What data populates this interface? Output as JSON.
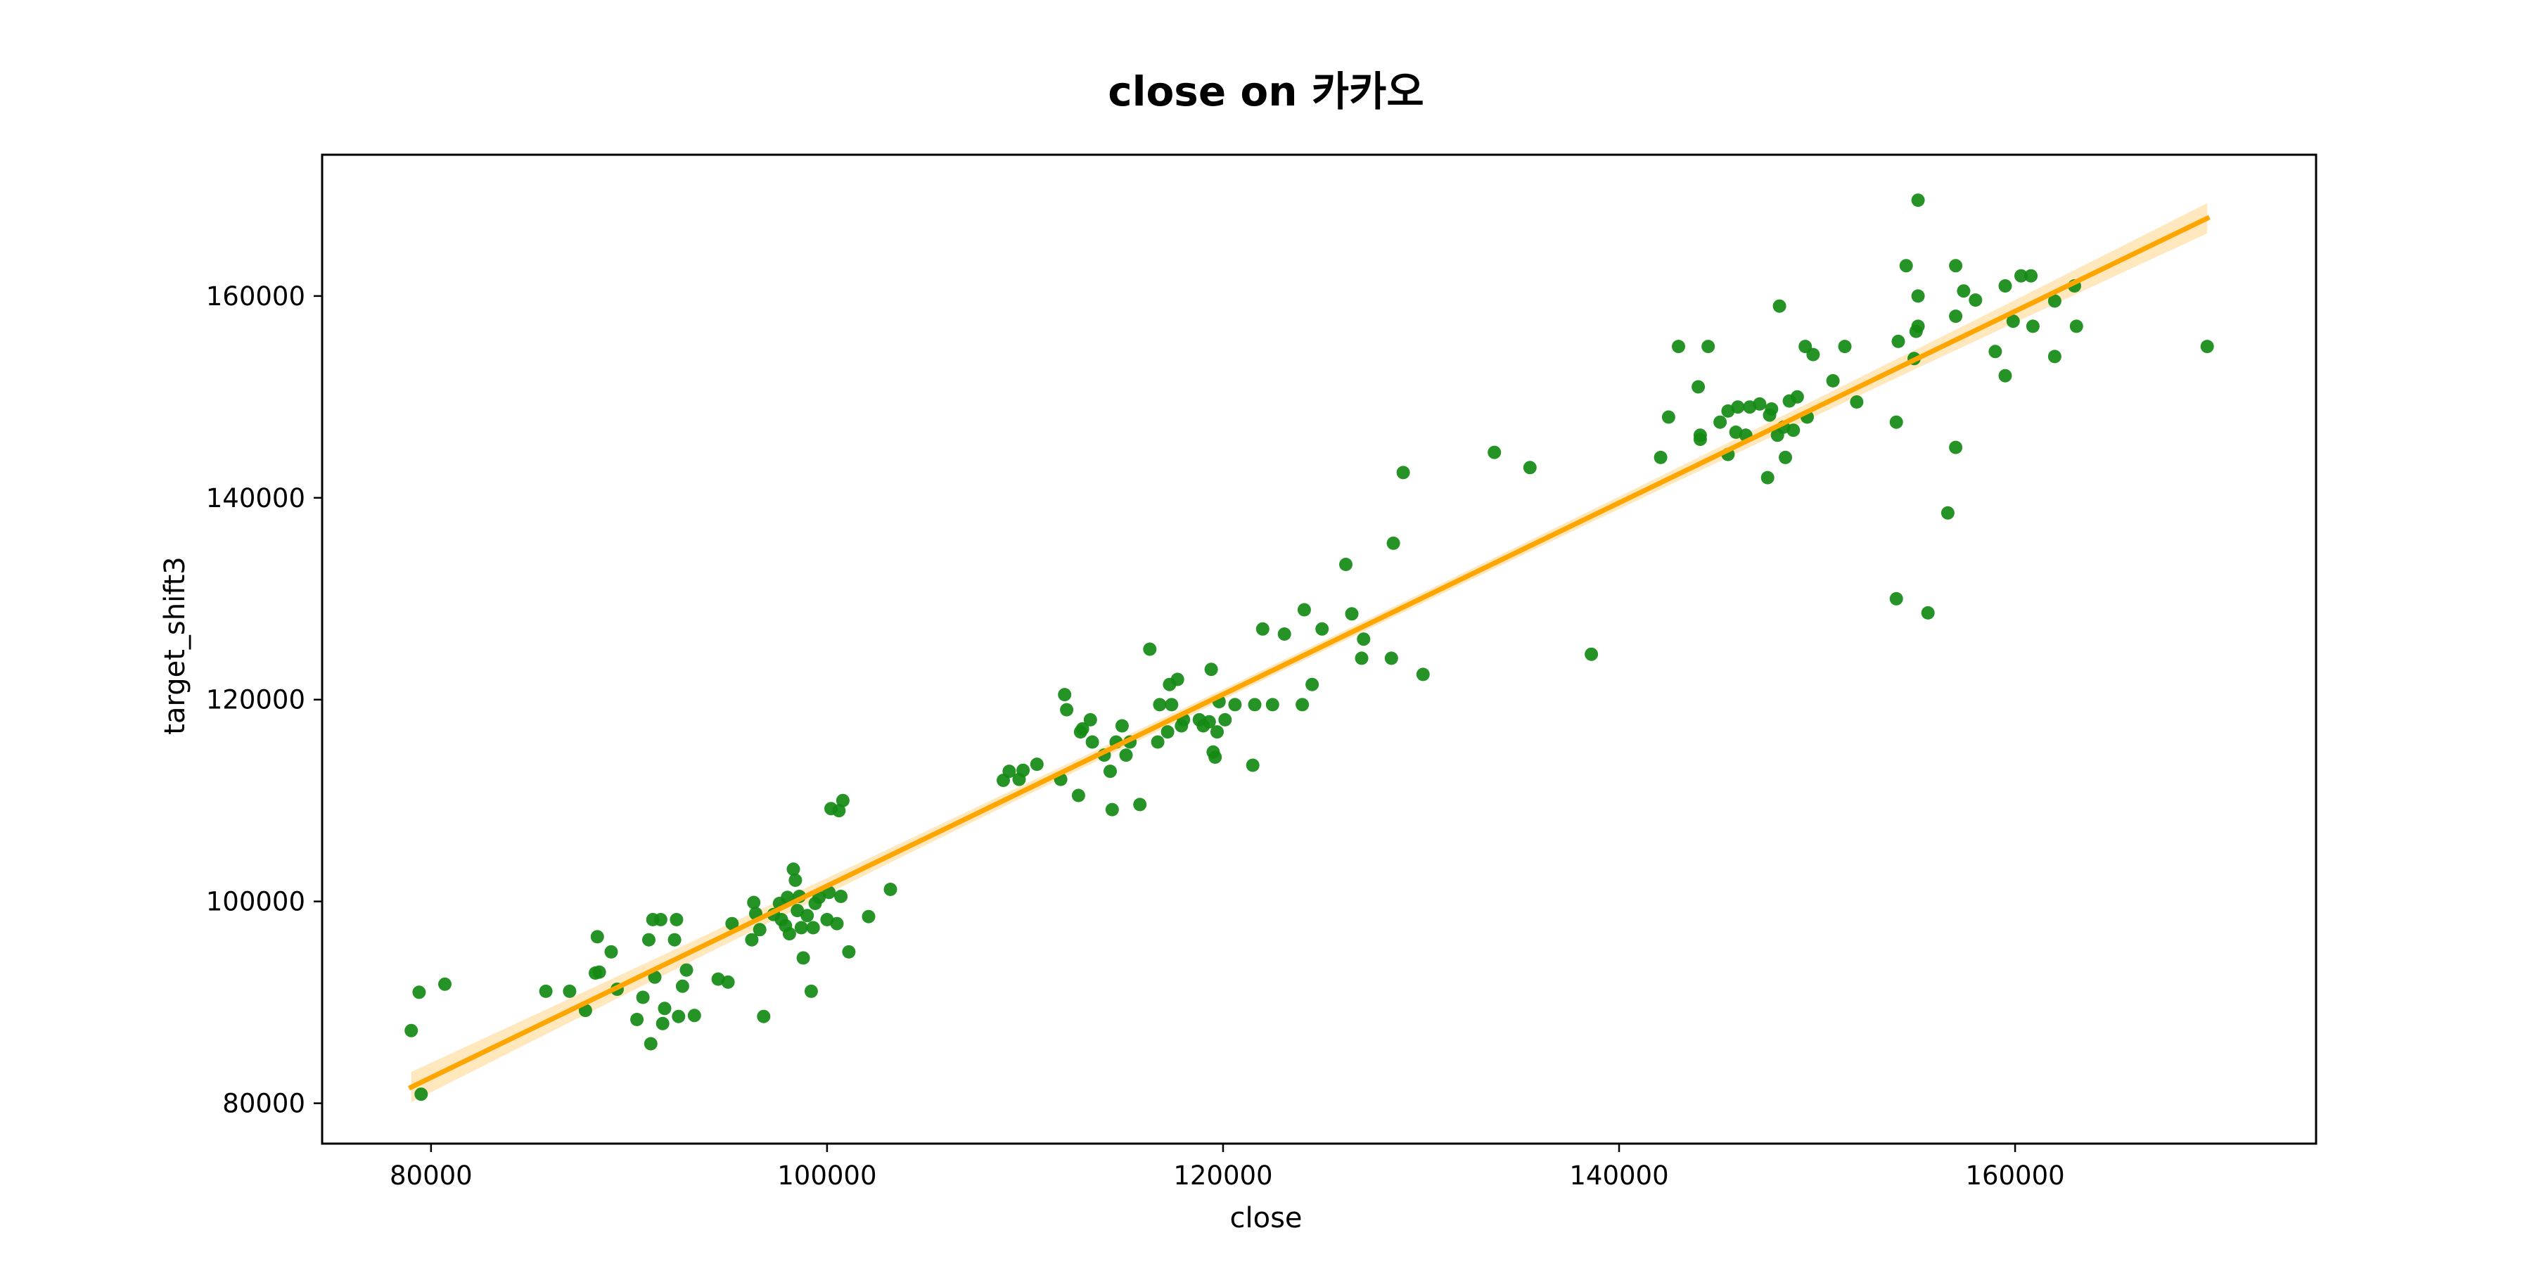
{
  "chart_data": {
    "type": "scatter",
    "title": "close on 카카오",
    "xlabel": "close",
    "ylabel": "target_shift3",
    "xlim": [
      74500,
      175200
    ],
    "ylim": [
      76000,
      174000
    ],
    "xticks": [
      80000,
      100000,
      120000,
      140000,
      160000
    ],
    "yticks": [
      80000,
      100000,
      120000,
      140000,
      160000
    ],
    "xtick_labels": [
      "80000",
      "100000",
      "120000",
      "140000",
      "160000"
    ],
    "ytick_labels": [
      "80000",
      "100000",
      "120000",
      "140000",
      "160000"
    ],
    "grid": false,
    "legend": "none",
    "colors": {
      "points": "#138a13",
      "regression": "#ffa500",
      "ci_band": "#ffe3b3",
      "frame": "#000000"
    },
    "regression": {
      "x_start": 79000,
      "y_start": 81600,
      "x_end": 169700,
      "y_end": 167700,
      "ci_halfwidth_ends": 1500,
      "ci_halfwidth_mid": 500
    },
    "points": [
      [
        79000,
        87200
      ],
      [
        79400,
        91000
      ],
      [
        79500,
        80900
      ],
      [
        80700,
        91800
      ],
      [
        85800,
        91100
      ],
      [
        87000,
        91100
      ],
      [
        87800,
        89200
      ],
      [
        88300,
        92900
      ],
      [
        88400,
        96500
      ],
      [
        88500,
        93000
      ],
      [
        89100,
        95000
      ],
      [
        89400,
        91300
      ],
      [
        90400,
        88300
      ],
      [
        90700,
        90500
      ],
      [
        91000,
        96200
      ],
      [
        91100,
        85900
      ],
      [
        91200,
        98200
      ],
      [
        91300,
        92500
      ],
      [
        91600,
        98200
      ],
      [
        91700,
        87900
      ],
      [
        91800,
        89400
      ],
      [
        92300,
        96200
      ],
      [
        92400,
        98200
      ],
      [
        92500,
        88600
      ],
      [
        92700,
        91600
      ],
      [
        92900,
        93200
      ],
      [
        93300,
        88700
      ],
      [
        94500,
        92300
      ],
      [
        95000,
        92000
      ],
      [
        95200,
        97800
      ],
      [
        96200,
        96200
      ],
      [
        96300,
        99900
      ],
      [
        96400,
        98800
      ],
      [
        96600,
        97200
      ],
      [
        96800,
        88600
      ],
      [
        97300,
        98700
      ],
      [
        97600,
        99800
      ],
      [
        97700,
        98200
      ],
      [
        97900,
        97600
      ],
      [
        98000,
        100400
      ],
      [
        98100,
        96800
      ],
      [
        98300,
        103200
      ],
      [
        98400,
        102100
      ],
      [
        98500,
        99100
      ],
      [
        98600,
        100500
      ],
      [
        98700,
        97400
      ],
      [
        98800,
        94400
      ],
      [
        99000,
        98600
      ],
      [
        99200,
        91100
      ],
      [
        99300,
        97400
      ],
      [
        99400,
        99800
      ],
      [
        99600,
        100400
      ],
      [
        100000,
        98200
      ],
      [
        100100,
        100900
      ],
      [
        100200,
        109200
      ],
      [
        100500,
        97800
      ],
      [
        100600,
        109000
      ],
      [
        100700,
        100500
      ],
      [
        100800,
        110000
      ],
      [
        101100,
        95000
      ],
      [
        102100,
        98500
      ],
      [
        103200,
        101200
      ],
      [
        108900,
        112000
      ],
      [
        109200,
        112900
      ],
      [
        109700,
        112100
      ],
      [
        109900,
        113000
      ],
      [
        110600,
        113600
      ],
      [
        111800,
        112100
      ],
      [
        112000,
        120500
      ],
      [
        112100,
        119000
      ],
      [
        112700,
        110500
      ],
      [
        112800,
        116800
      ],
      [
        112900,
        117100
      ],
      [
        113300,
        118000
      ],
      [
        113400,
        115800
      ],
      [
        114000,
        114500
      ],
      [
        114300,
        112900
      ],
      [
        114400,
        109100
      ],
      [
        114600,
        115800
      ],
      [
        114900,
        117400
      ],
      [
        115100,
        114500
      ],
      [
        115300,
        115800
      ],
      [
        115800,
        109600
      ],
      [
        116300,
        125000
      ],
      [
        116700,
        115800
      ],
      [
        116800,
        119500
      ],
      [
        117200,
        116800
      ],
      [
        117300,
        121500
      ],
      [
        117400,
        119500
      ],
      [
        117700,
        122000
      ],
      [
        117900,
        117400
      ],
      [
        118000,
        118000
      ],
      [
        118800,
        118000
      ],
      [
        119000,
        117400
      ],
      [
        119300,
        117800
      ],
      [
        119400,
        123000
      ],
      [
        119500,
        114800
      ],
      [
        119600,
        114300
      ],
      [
        119700,
        116800
      ],
      [
        119800,
        119800
      ],
      [
        120100,
        118000
      ],
      [
        120600,
        119500
      ],
      [
        121500,
        113500
      ],
      [
        121600,
        119500
      ],
      [
        122000,
        127000
      ],
      [
        122500,
        119500
      ],
      [
        123100,
        126500
      ],
      [
        124000,
        119500
      ],
      [
        124100,
        128900
      ],
      [
        124500,
        121500
      ],
      [
        125000,
        127000
      ],
      [
        126200,
        133400
      ],
      [
        126500,
        128500
      ],
      [
        127000,
        124100
      ],
      [
        127100,
        126000
      ],
      [
        128500,
        124100
      ],
      [
        128600,
        135500
      ],
      [
        129100,
        142500
      ],
      [
        130100,
        122500
      ],
      [
        133700,
        144500
      ],
      [
        135500,
        143000
      ],
      [
        138600,
        124500
      ],
      [
        142100,
        144000
      ],
      [
        142500,
        148000
      ],
      [
        143000,
        155000
      ],
      [
        144000,
        151000
      ],
      [
        144100,
        145800
      ],
      [
        144100,
        146200
      ],
      [
        144500,
        155000
      ],
      [
        145100,
        147500
      ],
      [
        145500,
        144300
      ],
      [
        145500,
        148600
      ],
      [
        145900,
        146500
      ],
      [
        146000,
        149000
      ],
      [
        146400,
        146200
      ],
      [
        146600,
        149000
      ],
      [
        147100,
        149300
      ],
      [
        147500,
        142000
      ],
      [
        147600,
        148200
      ],
      [
        147700,
        148800
      ],
      [
        148000,
        146200
      ],
      [
        148100,
        159000
      ],
      [
        148300,
        147000
      ],
      [
        148400,
        144000
      ],
      [
        148600,
        149600
      ],
      [
        148800,
        146700
      ],
      [
        149000,
        150000
      ],
      [
        149400,
        155000
      ],
      [
        149500,
        148000
      ],
      [
        149800,
        154200
      ],
      [
        150800,
        151600
      ],
      [
        151400,
        155000
      ],
      [
        152000,
        149500
      ],
      [
        154000,
        130000
      ],
      [
        154000,
        147500
      ],
      [
        154100,
        155500
      ],
      [
        154500,
        163000
      ],
      [
        154900,
        153800
      ],
      [
        155000,
        156500
      ],
      [
        155100,
        160000
      ],
      [
        155100,
        157000
      ],
      [
        155100,
        169500
      ],
      [
        155600,
        128600
      ],
      [
        156600,
        138500
      ],
      [
        157000,
        145000
      ],
      [
        157000,
        163000
      ],
      [
        157000,
        158000
      ],
      [
        157400,
        160500
      ],
      [
        158000,
        159600
      ],
      [
        159000,
        154500
      ],
      [
        159500,
        161000
      ],
      [
        159500,
        152100
      ],
      [
        159900,
        157500
      ],
      [
        160300,
        162000
      ],
      [
        160800,
        162000
      ],
      [
        160900,
        157000
      ],
      [
        162000,
        154000
      ],
      [
        162000,
        159500
      ],
      [
        163000,
        161000
      ],
      [
        163100,
        157000
      ],
      [
        169700,
        155000
      ]
    ]
  }
}
